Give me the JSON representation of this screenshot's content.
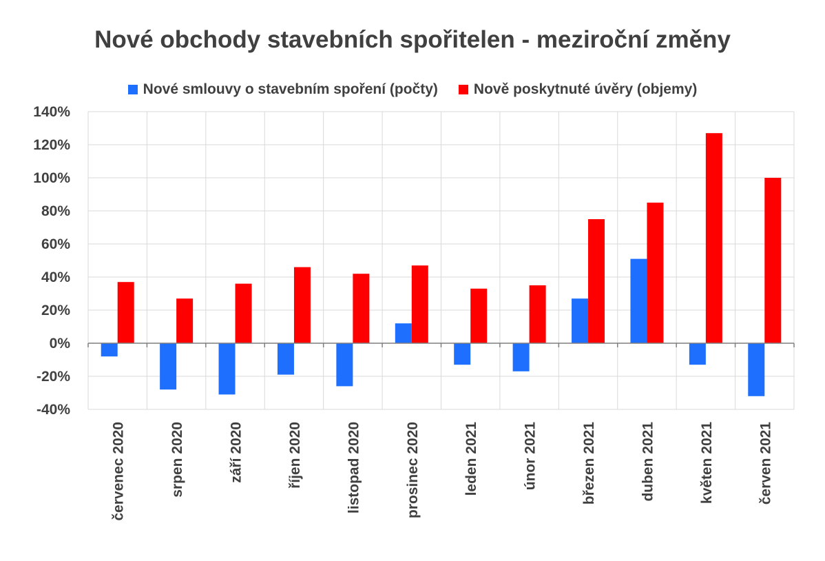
{
  "chart_data": {
    "type": "bar",
    "title": "Nové obchody stavebních spořitelen - meziroční změny",
    "categories": [
      "červenec 2020",
      "srpen 2020",
      "září 2020",
      "říjen 2020",
      "listopad 2020",
      "prosinec 2020",
      "leden 2021",
      "únor 2021",
      "březen 2021",
      "duben 2021",
      "květen 2021",
      "červen 2021"
    ],
    "series": [
      {
        "name": "Nové smlouvy o stavebním spoření (počty)",
        "color": "#1f6fff",
        "values": [
          -8,
          -28,
          -31,
          -19,
          -26,
          12,
          -13,
          -17,
          27,
          51,
          -13,
          -32
        ]
      },
      {
        "name": "Nově poskytnuté úvěry (objemy)",
        "color": "#ff0000",
        "values": [
          37,
          27,
          36,
          46,
          42,
          47,
          33,
          35,
          75,
          85,
          127,
          100
        ]
      }
    ],
    "ylim": [
      -40,
      140
    ],
    "yticks": [
      "-40%",
      "-20%",
      "0%",
      "20%",
      "40%",
      "60%",
      "80%",
      "100%",
      "120%",
      "140%"
    ],
    "ytick_values": [
      -40,
      -20,
      0,
      20,
      40,
      60,
      80,
      100,
      120,
      140
    ],
    "grid": true,
    "legend_position": "top"
  }
}
